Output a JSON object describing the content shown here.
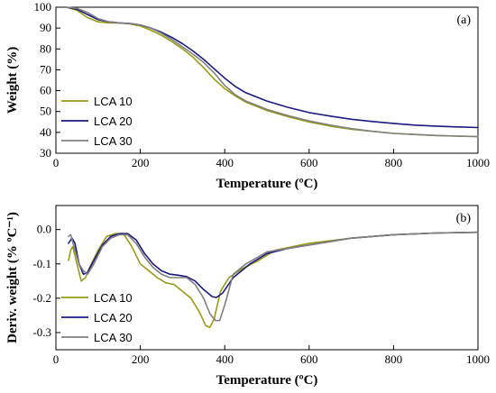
{
  "chart_data": [
    {
      "type": "line",
      "panel_label": "(a)",
      "xlabel": "Temperature (ºC)",
      "ylabel": "Weight (%)",
      "xlim": [
        0,
        1000
      ],
      "ylim": [
        30,
        100
      ],
      "xticks": [
        0,
        200,
        400,
        600,
        800,
        1000
      ],
      "yticks": [
        30,
        40,
        50,
        60,
        70,
        80,
        90,
        100
      ],
      "legend_position": "bottom-left",
      "grid": false,
      "series": [
        {
          "name": "LCA 10",
          "color": "#9a9a14",
          "x": [
            25,
            50,
            75,
            100,
            125,
            150,
            175,
            200,
            225,
            250,
            275,
            300,
            325,
            350,
            375,
            400,
            425,
            450,
            500,
            550,
            600,
            650,
            700,
            750,
            800,
            850,
            900,
            950,
            1000
          ],
          "y": [
            100,
            98.5,
            95,
            93,
            92.5,
            92.5,
            92,
            91,
            89,
            86.5,
            83.5,
            80,
            76,
            71,
            65.5,
            61,
            57.5,
            54.5,
            50.5,
            47.5,
            45,
            43,
            41.5,
            40.5,
            39.5,
            39,
            38.5,
            38.2,
            38
          ]
        },
        {
          "name": "LCA 20",
          "color": "#1a1a80",
          "x": [
            25,
            50,
            75,
            100,
            125,
            150,
            175,
            200,
            225,
            250,
            275,
            300,
            325,
            350,
            375,
            400,
            425,
            450,
            500,
            550,
            600,
            650,
            700,
            750,
            800,
            850,
            900,
            950,
            1000
          ],
          "y": [
            100,
            99,
            96.5,
            94,
            93,
            92.5,
            92.2,
            91.5,
            90,
            88,
            85.5,
            82.5,
            79,
            75,
            70.5,
            66,
            62,
            59,
            55,
            52,
            49.5,
            47.8,
            46.3,
            45.2,
            44.3,
            43.5,
            43,
            42.6,
            42.3
          ]
        },
        {
          "name": "LCA 30",
          "color": "#808080",
          "x": [
            25,
            50,
            75,
            100,
            125,
            150,
            175,
            200,
            225,
            250,
            275,
            300,
            325,
            350,
            375,
            400,
            425,
            450,
            500,
            550,
            600,
            650,
            700,
            750,
            800,
            850,
            900,
            950,
            1000
          ],
          "y": [
            100,
            99.5,
            97.5,
            94.5,
            93,
            92.5,
            92.2,
            91.5,
            90,
            87.5,
            84.5,
            81,
            77.5,
            73.5,
            68.5,
            62.5,
            58,
            55,
            51,
            48,
            45.5,
            43.5,
            41.8,
            40.5,
            39.5,
            39,
            38.5,
            38.2,
            38
          ]
        }
      ]
    },
    {
      "type": "line",
      "panel_label": "(b)",
      "xlabel": "Temperature (ºC)",
      "ylabel": "Deriv.  weight (% ºC⁻¹)",
      "xlim": [
        0,
        1000
      ],
      "ylim": [
        -0.35,
        0.07
      ],
      "xticks": [
        0,
        200,
        400,
        600,
        800,
        1000
      ],
      "yticks": [
        -0.3,
        -0.2,
        -0.1,
        0.0
      ],
      "ytick_labels": [
        "-0.3",
        "-0.2",
        "-0.1",
        "0.0"
      ],
      "legend_position": "bottom-left",
      "grid": false,
      "series": [
        {
          "name": "LCA 10",
          "color": "#9a9a14",
          "x": [
            30,
            35,
            40,
            50,
            60,
            70,
            80,
            100,
            120,
            140,
            160,
            180,
            200,
            220,
            240,
            260,
            280,
            300,
            320,
            340,
            355,
            365,
            375,
            390,
            410,
            440,
            480,
            520,
            600,
            700,
            800,
            900,
            1000
          ],
          "y": [
            -0.09,
            -0.06,
            -0.05,
            -0.1,
            -0.15,
            -0.14,
            -0.11,
            -0.06,
            -0.02,
            -0.012,
            -0.012,
            -0.05,
            -0.1,
            -0.12,
            -0.14,
            -0.155,
            -0.16,
            -0.18,
            -0.2,
            -0.24,
            -0.28,
            -0.285,
            -0.26,
            -0.18,
            -0.14,
            -0.115,
            -0.09,
            -0.06,
            -0.04,
            -0.025,
            -0.015,
            -0.01,
            -0.008
          ]
        },
        {
          "name": "LCA 20",
          "color": "#1a1a80",
          "x": [
            30,
            38,
            45,
            55,
            65,
            75,
            90,
            110,
            130,
            150,
            170,
            190,
            210,
            230,
            250,
            270,
            290,
            310,
            330,
            350,
            370,
            380,
            395,
            420,
            460,
            500,
            550,
            600,
            700,
            800,
            900,
            1000
          ],
          "y": [
            -0.04,
            -0.025,
            -0.04,
            -0.1,
            -0.13,
            -0.125,
            -0.09,
            -0.045,
            -0.02,
            -0.012,
            -0.012,
            -0.03,
            -0.07,
            -0.1,
            -0.12,
            -0.13,
            -0.133,
            -0.137,
            -0.15,
            -0.175,
            -0.195,
            -0.198,
            -0.185,
            -0.14,
            -0.1,
            -0.07,
            -0.055,
            -0.045,
            -0.025,
            -0.015,
            -0.01,
            -0.008
          ]
        },
        {
          "name": "LCA 30",
          "color": "#808080",
          "x": [
            30,
            35,
            45,
            55,
            65,
            75,
            90,
            110,
            130,
            150,
            170,
            190,
            210,
            230,
            250,
            270,
            290,
            310,
            330,
            350,
            365,
            378,
            388,
            400,
            420,
            450,
            500,
            550,
            600,
            700,
            800,
            900,
            1000
          ],
          "y": [
            -0.02,
            -0.015,
            -0.06,
            -0.1,
            -0.12,
            -0.13,
            -0.1,
            -0.05,
            -0.025,
            -0.015,
            -0.015,
            -0.04,
            -0.08,
            -0.11,
            -0.13,
            -0.14,
            -0.14,
            -0.14,
            -0.16,
            -0.2,
            -0.245,
            -0.265,
            -0.265,
            -0.22,
            -0.13,
            -0.1,
            -0.065,
            -0.055,
            -0.045,
            -0.025,
            -0.015,
            -0.01,
            -0.008
          ]
        }
      ]
    }
  ]
}
